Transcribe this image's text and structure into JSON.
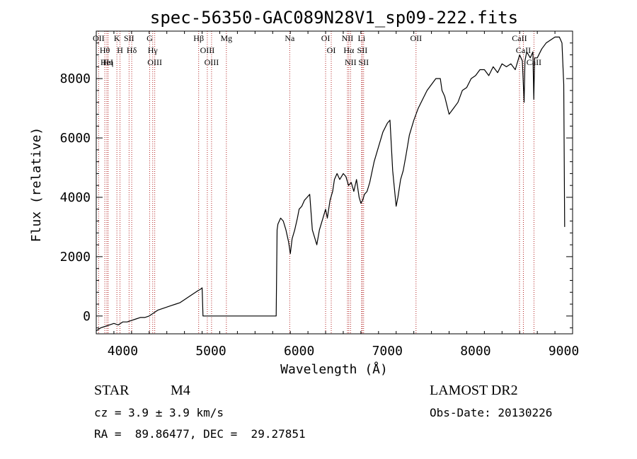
{
  "chart_data": {
    "type": "line",
    "title": "spec-56350-GAC089N28V1_sp09-222.fits",
    "xlabel": "Wavelength (Å)",
    "ylabel": "Flux (relative)",
    "xlim": [
      3700,
      9100
    ],
    "ylim": [
      -600,
      9600
    ],
    "x_ticks": [
      4000,
      5000,
      6000,
      7000,
      8000,
      9000
    ],
    "y_ticks": [
      0,
      2000,
      4000,
      6000,
      8000
    ],
    "grid": false,
    "line_color": "#000000",
    "marker_color": "#b22222",
    "series": [
      {
        "x": [
          3700,
          3750,
          3800,
          3850,
          3900,
          3950,
          4000,
          4050,
          4100,
          4150,
          4200,
          4250,
          4300,
          4350,
          4400,
          4450,
          4500,
          4550,
          4600,
          4650,
          4700,
          4750,
          4800,
          4850,
          4880,
          4900,
          4910,
          5000,
          5200,
          5400,
          5600,
          5740,
          5750,
          5760,
          5790,
          5820,
          5850,
          5880,
          5900,
          5920,
          5950,
          5980,
          6000,
          6030,
          6060,
          6090,
          6120,
          6150,
          6180,
          6200,
          6230,
          6250,
          6270,
          6300,
          6320,
          6350,
          6380,
          6400,
          6430,
          6460,
          6500,
          6530,
          6560,
          6590,
          6620,
          6650,
          6680,
          6700,
          6720,
          6740,
          6770,
          6800,
          6850,
          6900,
          6950,
          7000,
          7030,
          7060,
          7100,
          7120,
          7150,
          7180,
          7210,
          7250,
          7300,
          7350,
          7400,
          7450,
          7500,
          7550,
          7600,
          7620,
          7650,
          7700,
          7750,
          7800,
          7850,
          7900,
          7950,
          8000,
          8050,
          8100,
          8150,
          8200,
          8250,
          8300,
          8350,
          8400,
          8450,
          8500,
          8530,
          8550,
          8560,
          8580,
          8600,
          8620,
          8650,
          8660,
          8670,
          8700,
          8750,
          8800,
          8850,
          8900,
          8950,
          8980,
          9000,
          9010
        ],
        "y": [
          -500,
          -400,
          -350,
          -300,
          -250,
          -300,
          -200,
          -200,
          -150,
          -100,
          -50,
          -50,
          0,
          100,
          200,
          250,
          300,
          350,
          400,
          450,
          550,
          650,
          750,
          850,
          900,
          950,
          0,
          0,
          0,
          0,
          0,
          0,
          2900,
          3100,
          3300,
          3200,
          2900,
          2500,
          2100,
          2600,
          2900,
          3300,
          3600,
          3700,
          3900,
          4000,
          4100,
          2900,
          2600,
          2400,
          2900,
          3100,
          3300,
          3600,
          3300,
          3900,
          4200,
          4600,
          4800,
          4600,
          4800,
          4700,
          4400,
          4500,
          4200,
          4600,
          4000,
          3800,
          3900,
          4100,
          4200,
          4500,
          5200,
          5700,
          6200,
          6500,
          6600,
          4900,
          3700,
          4000,
          4600,
          4900,
          5400,
          6100,
          6600,
          7000,
          7300,
          7600,
          7800,
          8000,
          8000,
          7600,
          7400,
          6800,
          7000,
          7200,
          7600,
          7700,
          8000,
          8100,
          8300,
          8300,
          8100,
          8400,
          8200,
          8500,
          8400,
          8500,
          8300,
          8800,
          8600,
          7200,
          8600,
          8900,
          8800,
          8700,
          8900,
          7300,
          8700,
          8700,
          9000,
          9200,
          9300,
          9400,
          9400,
          9200,
          7800,
          3000
        ]
      }
    ],
    "lines": [
      {
        "label": "Hθ",
        "x": 3797
      },
      {
        "label": "OII",
        "x": 3727
      },
      {
        "label": "HeI",
        "x": 3820
      },
      {
        "label": "Hη",
        "x": 3835
      },
      {
        "label": "K",
        "x": 3934
      },
      {
        "label": "H",
        "x": 3969
      },
      {
        "label": "SII",
        "x": 4072
      },
      {
        "label": "Hδ",
        "x": 4102
      },
      {
        "label": "OIII",
        "x": 4363
      },
      {
        "label": "Hγ",
        "x": 4340
      },
      {
        "label": "G",
        "x": 4305
      },
      {
        "label": "Hβ",
        "x": 4861
      },
      {
        "label": "OIII",
        "x": 4959
      },
      {
        "label": "OIII",
        "x": 5007
      },
      {
        "label": "Mg",
        "x": 5175
      },
      {
        "label": "Na",
        "x": 5893
      },
      {
        "label": "OI",
        "x": 6300
      },
      {
        "label": "OI",
        "x": 6364
      },
      {
        "label": "NII",
        "x": 6548
      },
      {
        "label": "Hα",
        "x": 6563
      },
      {
        "label": "NII",
        "x": 6583
      },
      {
        "label": "SII",
        "x": 6716
      },
      {
        "label": "SII",
        "x": 6731
      },
      {
        "label": "Li",
        "x": 6708
      },
      {
        "label": "OII",
        "x": 7325
      },
      {
        "label": "CaII",
        "x": 8498
      },
      {
        "label": "CaII",
        "x": 8542
      },
      {
        "label": "CaII",
        "x": 8662
      }
    ]
  },
  "info": {
    "class_label": "STAR",
    "subclass_label": "M4",
    "survey_label": "LAMOST DR2",
    "cz_text": "cz = 3.9 ± 3.9 km/s",
    "obs_date_text": "Obs-Date: 20130226",
    "coords_text": "RA =  89.86477, DEC =  29.27851"
  }
}
